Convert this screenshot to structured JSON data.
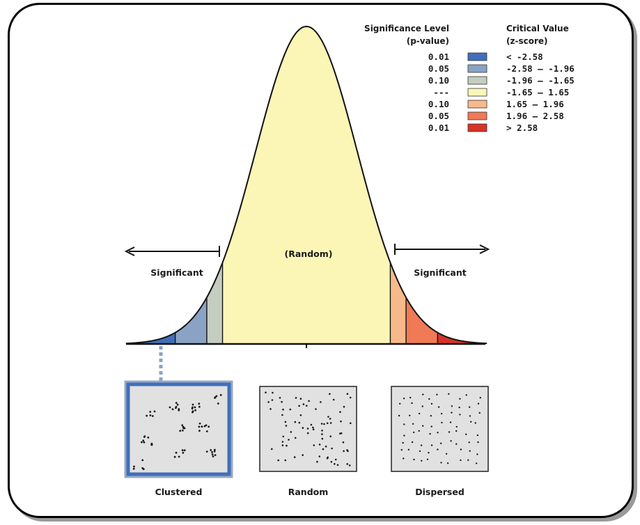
{
  "legend": {
    "significance_header_line1": "Significance Level",
    "significance_header_line2": "(p-value)",
    "critical_header_line1": "Critical Value",
    "critical_header_line2": "(z-score)",
    "rows": [
      {
        "p": "0.01",
        "z": "< -2.58",
        "color": "#3f6fbb"
      },
      {
        "p": "0.05",
        "z": "-2.58 – -1.96",
        "color": "#8aa3c4"
      },
      {
        "p": "0.10",
        "z": "-1.96 – -1.65",
        "color": "#c4cdbf"
      },
      {
        "p": "---",
        "z": "-1.65 – 1.65",
        "color": "#fbf6b5"
      },
      {
        "p": "0.10",
        "z": "1.65 – 1.96",
        "color": "#f8b98a"
      },
      {
        "p": "0.05",
        "z": "1.96 – 2.58",
        "color": "#ef7a55"
      },
      {
        "p": "0.01",
        "z": "> 2.58",
        "color": "#d73227"
      }
    ]
  },
  "curve": {
    "center_label": "(Random)",
    "left_label": "Significant",
    "right_label": "Significant",
    "cutoffs": [
      -2.58,
      -1.96,
      -1.65,
      1.65,
      1.96,
      2.58
    ]
  },
  "panels": [
    {
      "label": "Clustered",
      "pattern": "clustered",
      "highlighted": true
    },
    {
      "label": "Random",
      "pattern": "random",
      "highlighted": false
    },
    {
      "label": "Dispersed",
      "pattern": "dispersed",
      "highlighted": false
    }
  ],
  "colors": {
    "panel_fill": "#e1e1e1",
    "highlight_border": "#3f6fbb",
    "dots": "#1a1a1a"
  }
}
